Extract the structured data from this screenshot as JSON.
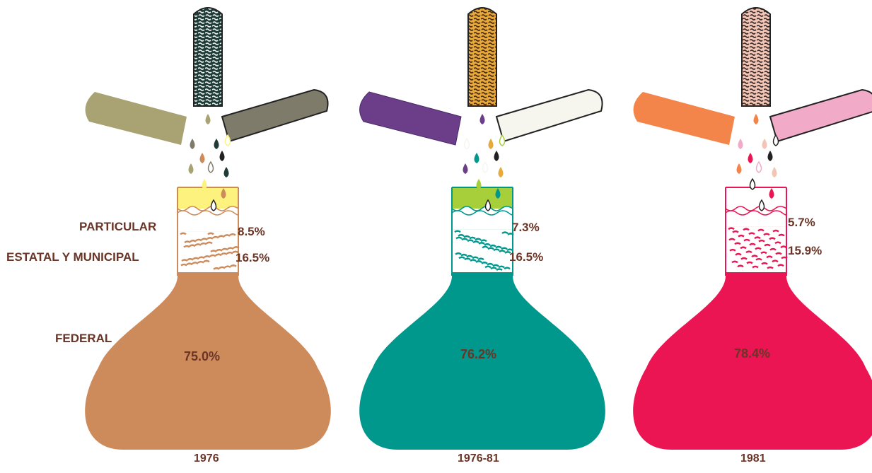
{
  "chart_data": {
    "type": "bar",
    "title": "",
    "categories": [
      "FEDERAL",
      "ESTATAL Y MUNICIPAL",
      "PARTICULAR"
    ],
    "periods": [
      "1976",
      "1976-81",
      "1981"
    ],
    "series": [
      {
        "name": "1976",
        "values": [
          75.0,
          16.5,
          8.5
        ],
        "labels": [
          "75.0%",
          "16.5%",
          "8.5%"
        ],
        "colors": {
          "body": "#cd8b5b",
          "top": "#fdf27d",
          "left_tube": "#a9a373",
          "right_tube": "#7e7b6a",
          "center_tube": "#1f3b38"
        }
      },
      {
        "name": "1976-81",
        "values": [
          76.2,
          16.5,
          7.3
        ],
        "labels": [
          "76.2%",
          "16.5%",
          "7.3%"
        ],
        "colors": {
          "body": "#00978d",
          "top": "#a6cf3a",
          "left_tube": "#6c3e8a",
          "right_tube": "#f6f6ef",
          "center_tube": "#e8a93b"
        }
      },
      {
        "name": "1981",
        "values": [
          78.4,
          15.9,
          5.7
        ],
        "labels": [
          "78.4%",
          "15.9%",
          "5.7%"
        ],
        "colors": {
          "body": "#ec1554",
          "top": "#ffffff",
          "left_tube": "#f3854a",
          "right_tube": "#f2aac9",
          "center_tube": "#f2c5b5"
        }
      }
    ],
    "legend": "left, category labels beside first flask",
    "grid": false
  },
  "text_color": "#6a3526"
}
